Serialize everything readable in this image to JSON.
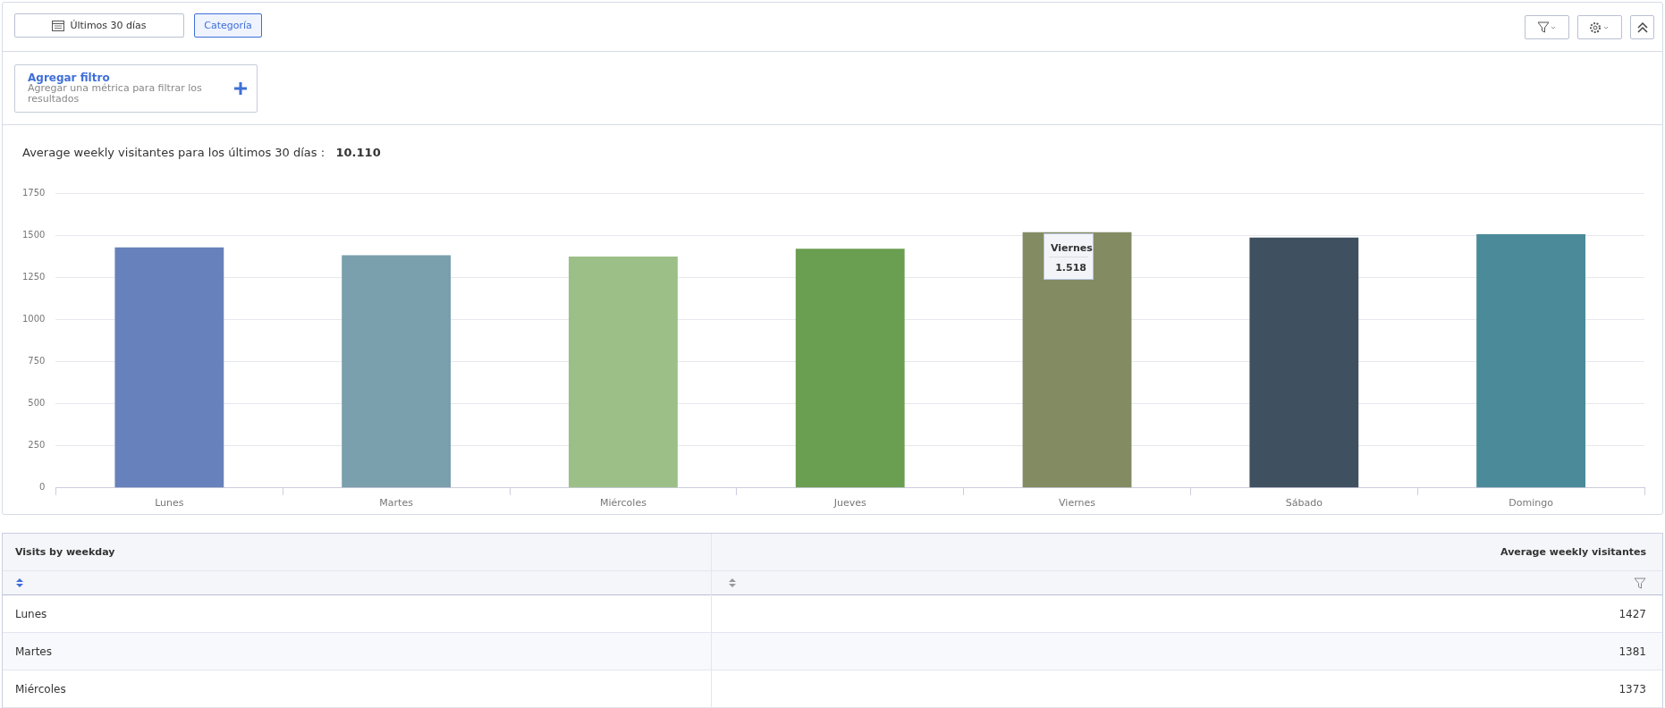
{
  "chart_data": {
    "type": "bar",
    "title": "Average weekly visitantes para los últimos 30 días :",
    "subtitle": "10.110",
    "categories": [
      "Lunes",
      "Martes",
      "Miércoles",
      "Jueves",
      "Viernes",
      "Sábado",
      "Domingo"
    ],
    "values": [
      1427,
      1381,
      1373,
      1420,
      1518,
      1486,
      1506
    ],
    "colors": [
      "#6681bb",
      "#7a9fad",
      "#9bbf87",
      "#6a9e50",
      "#838b63",
      "#3f5060",
      "#4b8a98"
    ],
    "ylim": [
      0,
      1750
    ],
    "yticks": [
      0,
      250,
      500,
      750,
      1000,
      1250,
      1500,
      1750
    ],
    "grid": "y",
    "legend": false,
    "annotations": [
      "Últimos 30 días",
      "Categoría",
      "Agregar filtro",
      "Agregar una métrica para filtrar los resultados",
      "Visits by weekday",
      "Average weekly visitantes",
      "Viernes",
      "1.518",
      "1427",
      "1381",
      "1373"
    ]
  }
}
